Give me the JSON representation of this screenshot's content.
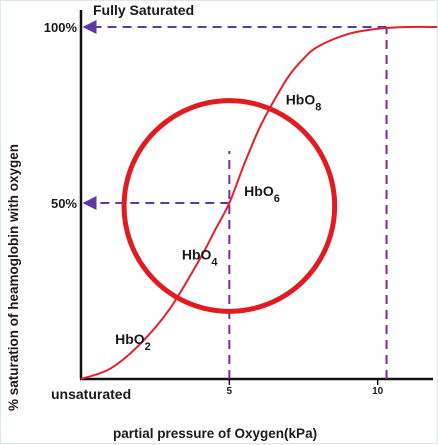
{
  "chart_data": {
    "type": "line",
    "title": "Fully Saturated",
    "xlabel": "partial pressure of Oxygen(kPa)",
    "ylabel": "% saturation of heamoglobin with oxygen",
    "bottom_left_label": "unsaturated",
    "xlim": [
      0,
      12
    ],
    "ylim": [
      0,
      100
    ],
    "x_ticks": [
      5,
      10
    ],
    "x_tick_labels": [
      "5",
      "10"
    ],
    "y_ticks": [
      50,
      100
    ],
    "y_tick_labels": [
      "50%",
      "100%"
    ],
    "series": [
      {
        "points": [
          [
            0,
            0
          ],
          [
            1,
            3
          ],
          [
            2,
            10
          ],
          [
            3,
            20
          ],
          [
            4,
            34
          ],
          [
            4.5,
            42
          ],
          [
            5,
            50
          ],
          [
            5.5,
            61
          ],
          [
            6,
            71
          ],
          [
            6.5,
            79
          ],
          [
            7,
            86
          ],
          [
            7.5,
            91
          ],
          [
            8,
            94.5
          ],
          [
            9,
            98
          ],
          [
            10,
            99.5
          ],
          [
            11,
            100
          ],
          [
            12,
            100
          ]
        ],
        "color": "#e5202e"
      }
    ],
    "reference_lines": [
      {
        "x": 5,
        "y": 50,
        "color": "#7f2a9a"
      },
      {
        "x": 10.3,
        "y": 100,
        "color": "#7f2a9a"
      }
    ],
    "annotations": [
      {
        "text": "HbO",
        "sub": "2",
        "x": 1.15,
        "y": 10
      },
      {
        "text": "HbO",
        "sub": "4",
        "x": 3.4,
        "y": 34
      },
      {
        "text": "HbO",
        "sub": "6",
        "x": 5.5,
        "y": 52
      },
      {
        "text": "HbO",
        "sub": "8",
        "x": 6.9,
        "y": 78
      }
    ],
    "highlight_circle": {
      "cx": 5,
      "cy": 50,
      "r_data_x": 3.55,
      "color": "#e11b22"
    },
    "colors": {
      "curve": "#e5202e",
      "dashed": "#7f2a9a",
      "circle": "#e11b22",
      "axis": "#111111"
    }
  }
}
